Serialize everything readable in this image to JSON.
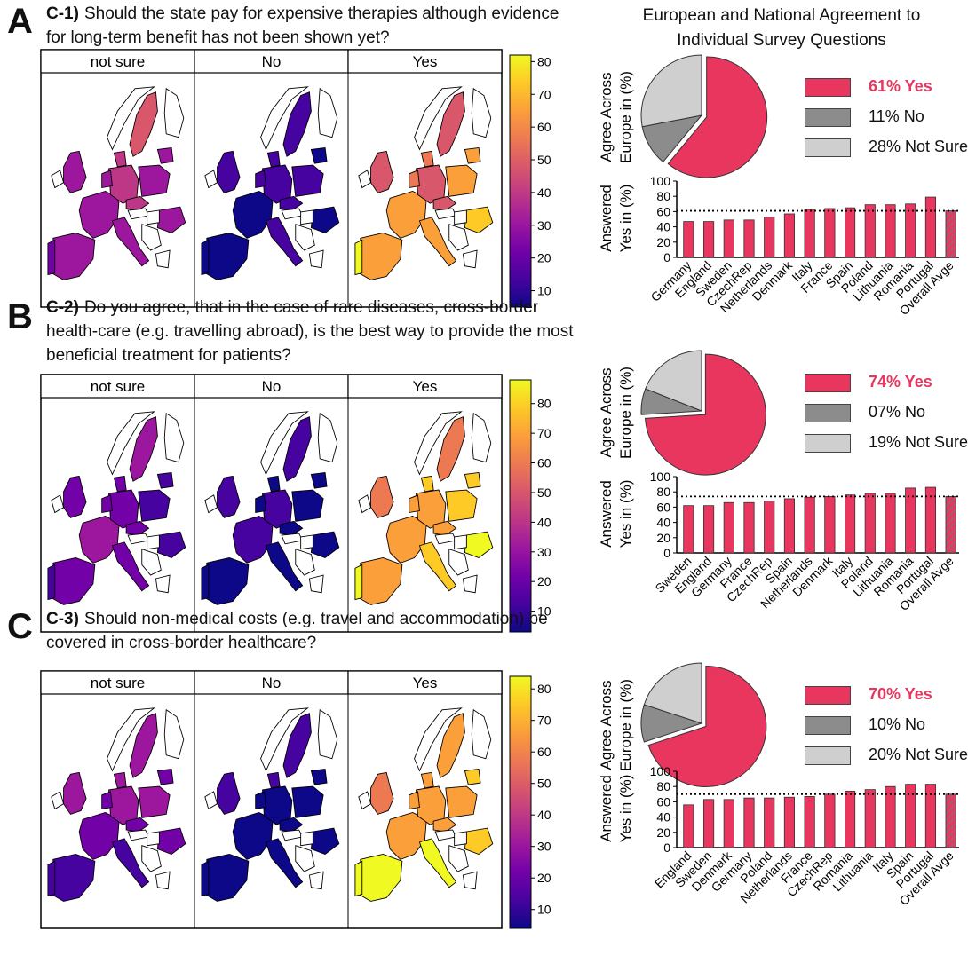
{
  "header": {
    "title": "European and National Agreement to Individual Survey Questions"
  },
  "common": {
    "map_headers": [
      "not sure",
      "No",
      "Yes"
    ],
    "pie_ylabel_line1": "Agree Across",
    "pie_ylabel_line2": "Europe in (%)",
    "bar_ylabel_line1": "Answered",
    "bar_ylabel_line2": "Yes in (%)",
    "colors": {
      "yes": "#e8365f",
      "no": "#8c8c8c",
      "not_sure": "#cfcfcf",
      "colorbar": [
        "#0d0887",
        "#46039f",
        "#7201a8",
        "#9c179e",
        "#bd3786",
        "#d8576b",
        "#ed7953",
        "#fb9f3a",
        "#fdca26",
        "#f0f921"
      ]
    }
  },
  "panels": [
    {
      "label": "A",
      "question_number": "C-1)",
      "question": "Should the state pay for expensive therapies although evidence for long-term benefit has not been shown yet?",
      "legend": {
        "yes": "61% Yes",
        "no": "11% No",
        "not_sure": "28% Not Sure"
      },
      "colorbar_ticks": [
        10,
        20,
        30,
        40,
        50,
        60,
        70,
        80
      ],
      "colorbar_range": [
        5,
        82
      ]
    },
    {
      "label": "B",
      "question_number": "C-2)",
      "question": "Do you agree, that in the case of rare diseases, cross-border health-care (e.g. travelling abroad), is the best way to provide the most beneficial treatment for patients?",
      "legend": {
        "yes": "74% Yes",
        "no": "07% No",
        "not_sure": "19% Not Sure"
      },
      "colorbar_ticks": [
        10,
        20,
        30,
        40,
        50,
        60,
        70,
        80
      ],
      "colorbar_range": [
        3,
        88
      ]
    },
    {
      "label": "C",
      "question_number": "C-3)",
      "question": "Should non-medical costs (e.g. travel and accommodation) be covered in cross-border healthcare?",
      "legend": {
        "yes": "70% Yes",
        "no": "10% No",
        "not_sure": "20% Not Sure"
      },
      "colorbar_ticks": [
        10,
        20,
        30,
        40,
        50,
        60,
        70,
        80
      ],
      "colorbar_range": [
        4,
        84
      ]
    }
  ],
  "chart_data": [
    {
      "type": "pie",
      "title": "C-1) Agree Across Europe in (%)",
      "categories": [
        "Yes",
        "No",
        "Not Sure"
      ],
      "values": [
        61,
        11,
        28
      ]
    },
    {
      "type": "bar",
      "title": "C-1) Answered Yes in (%)",
      "categories": [
        "Germany",
        "England",
        "Sweden",
        "CzechRep",
        "Netherlands",
        "Denmark",
        "Italy",
        "France",
        "Spain",
        "Poland",
        "Lithuania",
        "Romania",
        "Portugal",
        "Overall Avge"
      ],
      "values": [
        47,
        47,
        49,
        49,
        53,
        57,
        63,
        64,
        65,
        69,
        69,
        70,
        79,
        61
      ],
      "ylim": [
        0,
        100
      ],
      "yticks": [
        0,
        20,
        40,
        60,
        80,
        100
      ],
      "reference_line": 61,
      "xlabel": "",
      "ylabel": "Answered Yes in (%)"
    },
    {
      "type": "pie",
      "title": "C-2) Agree Across Europe in (%)",
      "categories": [
        "Yes",
        "No",
        "Not Sure"
      ],
      "values": [
        74,
        7,
        19
      ]
    },
    {
      "type": "bar",
      "title": "C-2) Answered Yes in (%)",
      "categories": [
        "Sweden",
        "England",
        "Germany",
        "France",
        "CzechRep",
        "Spain",
        "Netherlands",
        "Denmark",
        "Italy",
        "Poland",
        "Lithuania",
        "Romania",
        "Portugal",
        "Overall Avge"
      ],
      "values": [
        62,
        62,
        66,
        66,
        68,
        71,
        73,
        74,
        76,
        78,
        78,
        85,
        86,
        74
      ],
      "ylim": [
        0,
        100
      ],
      "yticks": [
        0,
        20,
        40,
        60,
        80,
        100
      ],
      "reference_line": 74,
      "xlabel": "",
      "ylabel": "Answered Yes in (%)"
    },
    {
      "type": "pie",
      "title": "C-3) Agree Across Europe in (%)",
      "categories": [
        "Yes",
        "No",
        "Not Sure"
      ],
      "values": [
        70,
        10,
        20
      ]
    },
    {
      "type": "bar",
      "title": "C-3) Answered Yes in (%)",
      "categories": [
        "England",
        "Sweden",
        "Denmark",
        "Germany",
        "Poland",
        "Netherlands",
        "France",
        "CzechRep",
        "Romania",
        "Lithuania",
        "Italy",
        "Spain",
        "Portugal",
        "Overall Avge"
      ],
      "values": [
        56,
        63,
        63,
        65,
        65,
        66,
        67,
        70,
        74,
        76,
        80,
        83,
        83,
        70
      ],
      "ylim": [
        0,
        100
      ],
      "yticks": [
        0,
        20,
        40,
        60,
        80,
        100
      ],
      "reference_line": 70,
      "xlabel": "",
      "ylabel": "Answered Yes in (%)"
    }
  ]
}
